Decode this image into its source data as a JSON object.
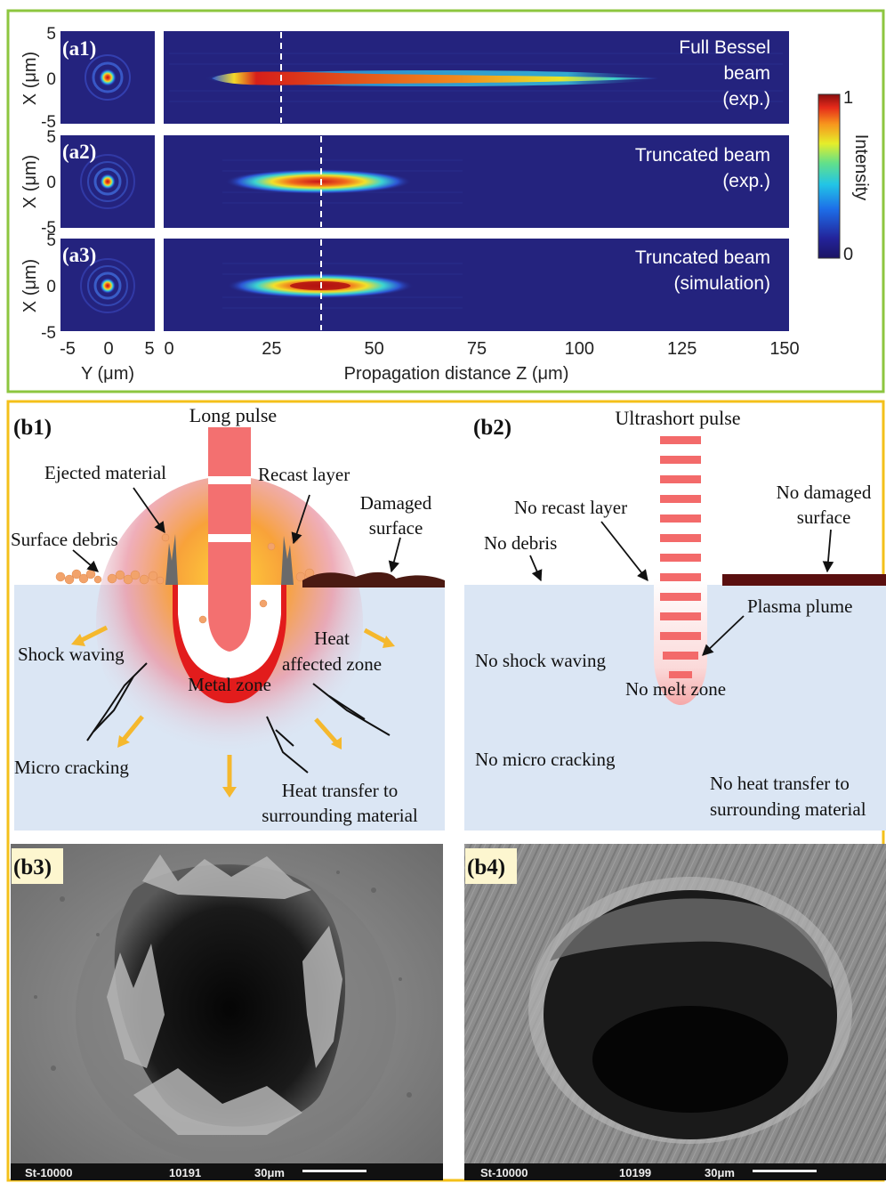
{
  "panel_a": {
    "rows": [
      {
        "label": "(a1)",
        "title_lines": [
          "Full Bessel",
          "beam",
          "(exp.)"
        ]
      },
      {
        "label": "(a2)",
        "title_lines": [
          "Truncated beam",
          "(exp.)"
        ]
      },
      {
        "label": "(a3)",
        "title_lines": [
          "Truncated beam",
          "(simulation)"
        ]
      }
    ],
    "y_axis_label": "X (μm)",
    "y_ticks": [
      "5",
      "0",
      "-5"
    ],
    "small_x_ticks": [
      "-5",
      "0",
      "5"
    ],
    "small_x_label": "Y (μm)",
    "z_ticks": [
      "0",
      "25",
      "50",
      "75",
      "100",
      "125",
      "150"
    ],
    "z_label": "Propagation distance Z (μm)",
    "colorbar": {
      "label": "Intensity",
      "max": "1",
      "min": "0"
    }
  },
  "panel_b1": {
    "label": "(b1)",
    "pulse_label": "Long pulse",
    "annotations": {
      "ejected": "Ejected material",
      "recast": "Recast layer",
      "damaged_1": "Damaged",
      "damaged_2": "surface",
      "debris": "Surface debris",
      "shock": "Shock waving",
      "heat_1": "Heat",
      "heat_2": "affected zone",
      "metal": "Metal zone",
      "micro": "Micro cracking",
      "transfer_1": "Heat transfer to",
      "transfer_2": "surrounding material"
    }
  },
  "panel_b2": {
    "label": "(b2)",
    "pulse_label": "Ultrashort pulse",
    "annotations": {
      "no_damaged_1": "No damaged",
      "no_damaged_2": "surface",
      "no_recast": "No recast layer",
      "no_debris": "No debris",
      "plasma": "Plasma plume",
      "no_shock": "No shock waving",
      "no_melt": "No melt zone",
      "no_micro": "No micro cracking",
      "no_transfer_1": "No heat transfer to",
      "no_transfer_2": "surrounding material"
    }
  },
  "panel_b3": {
    "label": "(b3)",
    "footer": [
      "St-10000",
      "10191",
      "30μm"
    ]
  },
  "panel_b4": {
    "label": "(b4)",
    "footer": [
      "St-10000",
      "10199",
      "30μm"
    ]
  }
}
